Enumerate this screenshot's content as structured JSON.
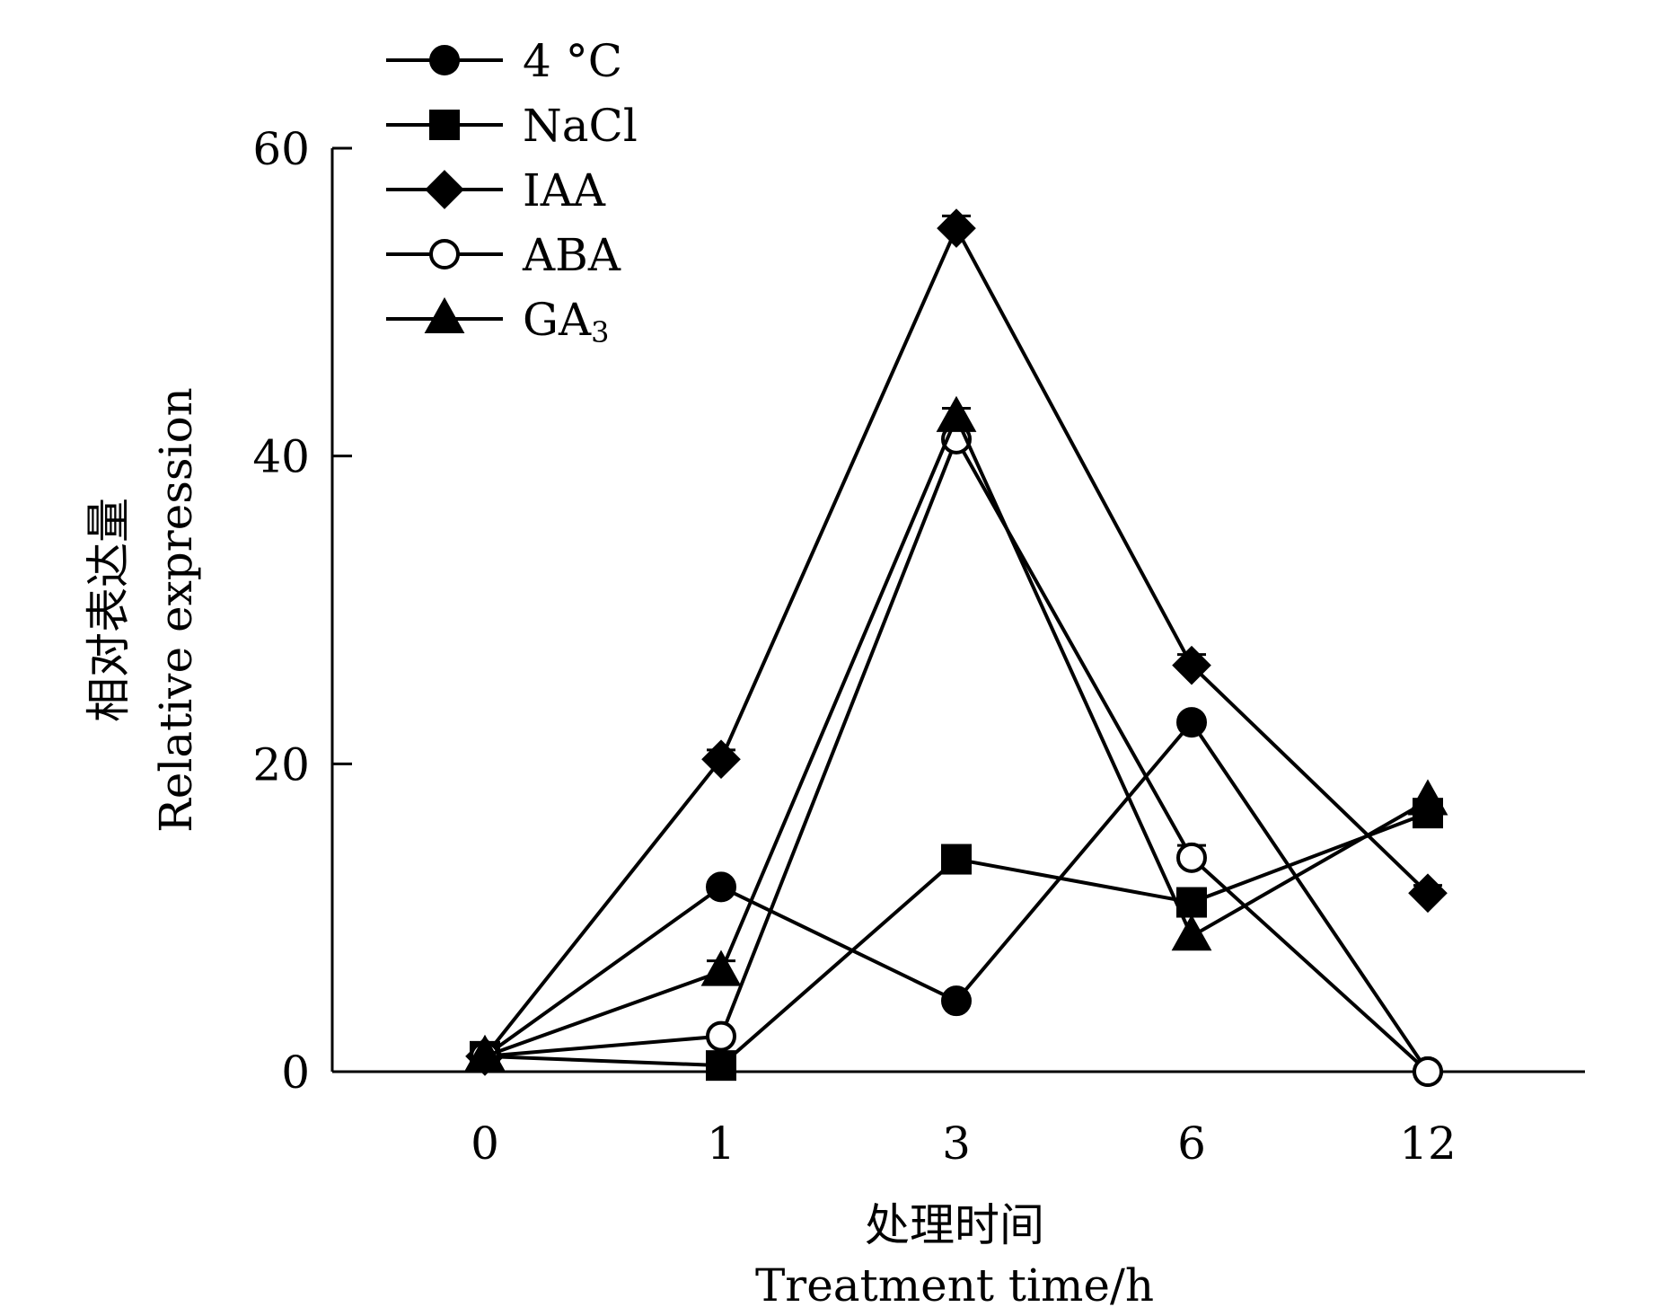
{
  "chart_data": {
    "type": "line",
    "title": "",
    "xlabel_cn": "处理时间",
    "xlabel": "Treatment time/h",
    "ylabel_cn": "相对表达量",
    "ylabel": "Relative expression",
    "categories": [
      "0",
      "1",
      "3",
      "6",
      "12"
    ],
    "ylim": [
      0,
      60
    ],
    "yticks": [
      0,
      20,
      40,
      60
    ],
    "grid": false,
    "legend_position": "top-left",
    "series": [
      {
        "name": "4 °C",
        "name_main": "4 °C",
        "name_sub": "",
        "marker": "circle",
        "filled": true,
        "values": [
          1,
          12,
          4.6,
          22.7,
          0
        ],
        "errors": [
          0,
          0,
          0,
          0,
          0
        ]
      },
      {
        "name": "NaCl",
        "name_main": "NaCl",
        "name_sub": "",
        "marker": "square",
        "filled": true,
        "values": [
          1,
          0.4,
          13.8,
          11,
          16.8
        ],
        "errors": [
          0,
          0,
          0,
          0,
          0
        ]
      },
      {
        "name": "IAA",
        "name_main": "IAA",
        "name_sub": "",
        "marker": "diamond",
        "filled": true,
        "values": [
          1,
          20.3,
          54.8,
          26.4,
          11.6
        ],
        "errors": [
          0,
          0.6,
          0.8,
          0.7,
          0.5
        ]
      },
      {
        "name": "ABA",
        "name_main": "ABA",
        "name_sub": "",
        "marker": "circle",
        "filled": false,
        "values": [
          1,
          2.3,
          41.1,
          13.9,
          0
        ],
        "errors": [
          0,
          0,
          0,
          0.8,
          0
        ]
      },
      {
        "name": "GA3",
        "name_main": "GA",
        "name_sub": "3",
        "marker": "triangle",
        "filled": true,
        "values": [
          1,
          6.5,
          42.5,
          8.8,
          17.6
        ],
        "errors": [
          0,
          0.7,
          0.6,
          0,
          0
        ]
      }
    ]
  }
}
